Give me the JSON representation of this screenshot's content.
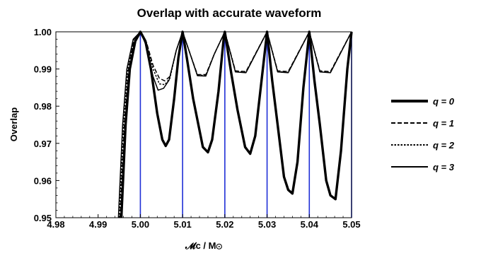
{
  "chart_data": {
    "type": "line",
    "title": "Overlap with accurate waveform",
    "xlabel": "𝓜c / M⊙",
    "ylabel": "Overlap",
    "xlim": [
      4.98,
      5.05
    ],
    "ylim": [
      0.95,
      1.0
    ],
    "x_ticks": [
      "4.98",
      "4.99",
      "5.00",
      "5.01",
      "5.02",
      "5.03",
      "5.04",
      "5.05"
    ],
    "y_ticks": [
      "0.95",
      "0.96",
      "0.97",
      "0.98",
      "0.99",
      "1.00"
    ],
    "grid": false,
    "legend_position": "right",
    "vertical_markers": [
      5.0,
      5.01,
      5.02,
      5.03,
      5.04,
      5.05
    ],
    "vertical_marker_color": "#1f2fd6",
    "line_color": "#000000",
    "series": [
      {
        "name": "q = 0",
        "style": "thick",
        "points": [
          [
            4.9955,
            0.95
          ],
          [
            4.9965,
            0.975
          ],
          [
            4.9975,
            0.99
          ],
          [
            4.9988,
            0.9975
          ],
          [
            5.0,
            1.0
          ],
          [
            5.0012,
            0.9975
          ],
          [
            5.0025,
            0.99
          ],
          [
            5.004,
            0.978
          ],
          [
            5.0052,
            0.971
          ],
          [
            5.006,
            0.9693
          ],
          [
            5.0068,
            0.971
          ],
          [
            5.008,
            0.982
          ],
          [
            5.009,
            0.993
          ],
          [
            5.01,
            1.0
          ],
          [
            5.011,
            0.993
          ],
          [
            5.0125,
            0.982
          ],
          [
            5.0148,
            0.969
          ],
          [
            5.016,
            0.9676
          ],
          [
            5.017,
            0.971
          ],
          [
            5.0185,
            0.984
          ],
          [
            5.0198,
            0.999
          ],
          [
            5.02,
            1.0
          ],
          [
            5.0215,
            0.989
          ],
          [
            5.023,
            0.979
          ],
          [
            5.0248,
            0.969
          ],
          [
            5.026,
            0.9672
          ],
          [
            5.0272,
            0.972
          ],
          [
            5.0285,
            0.985
          ],
          [
            5.03,
            1.0
          ],
          [
            5.0312,
            0.987
          ],
          [
            5.0325,
            0.975
          ],
          [
            5.034,
            0.961
          ],
          [
            5.035,
            0.9575
          ],
          [
            5.036,
            0.9565
          ],
          [
            5.0372,
            0.965
          ],
          [
            5.0386,
            0.985
          ],
          [
            5.04,
            1.0
          ],
          [
            5.0412,
            0.987
          ],
          [
            5.0425,
            0.975
          ],
          [
            5.044,
            0.96
          ],
          [
            5.045,
            0.956
          ],
          [
            5.0462,
            0.955
          ],
          [
            5.0475,
            0.968
          ],
          [
            5.049,
            0.99
          ],
          [
            5.05,
            1.0
          ]
        ]
      },
      {
        "name": "q = 1",
        "style": "dashed",
        "points": [
          [
            4.9952,
            0.95
          ],
          [
            4.9962,
            0.975
          ],
          [
            4.9972,
            0.99
          ],
          [
            4.9985,
            0.998
          ],
          [
            5.0,
            1.0
          ],
          [
            5.0015,
            0.997
          ],
          [
            5.003,
            0.991
          ],
          [
            5.0045,
            0.9875
          ],
          [
            5.0058,
            0.9868
          ],
          [
            5.007,
            0.988
          ],
          [
            5.0085,
            0.995
          ],
          [
            5.01,
            1.0
          ],
          [
            5.0115,
            0.995
          ],
          [
            5.0135,
            0.9885
          ],
          [
            5.0155,
            0.9885
          ],
          [
            5.0175,
            0.994
          ],
          [
            5.02,
            1.0
          ],
          [
            5.0225,
            0.9895
          ],
          [
            5.025,
            0.9893
          ],
          [
            5.03,
            1.0
          ],
          [
            5.0325,
            0.9895
          ],
          [
            5.035,
            0.9893
          ],
          [
            5.04,
            1.0
          ],
          [
            5.0425,
            0.9895
          ],
          [
            5.045,
            0.9893
          ],
          [
            5.05,
            1.0
          ]
        ]
      },
      {
        "name": "q = 2",
        "style": "dotted",
        "points": [
          [
            4.995,
            0.95
          ],
          [
            4.996,
            0.975
          ],
          [
            4.997,
            0.99
          ],
          [
            4.9985,
            0.998
          ],
          [
            5.0,
            1.0
          ],
          [
            5.0015,
            0.997
          ],
          [
            5.003,
            0.99
          ],
          [
            5.0045,
            0.986
          ],
          [
            5.0058,
            0.9858
          ],
          [
            5.007,
            0.9875
          ],
          [
            5.0085,
            0.995
          ],
          [
            5.01,
            1.0
          ],
          [
            5.0115,
            0.995
          ],
          [
            5.0135,
            0.9883
          ],
          [
            5.0155,
            0.9883
          ],
          [
            5.0175,
            0.994
          ],
          [
            5.02,
            1.0
          ],
          [
            5.0225,
            0.9893
          ],
          [
            5.025,
            0.9891
          ],
          [
            5.03,
            1.0
          ],
          [
            5.0325,
            0.9893
          ],
          [
            5.035,
            0.9891
          ],
          [
            5.04,
            1.0
          ],
          [
            5.0425,
            0.9893
          ],
          [
            5.045,
            0.9891
          ],
          [
            5.05,
            1.0
          ]
        ]
      },
      {
        "name": "q = 3",
        "style": "solid",
        "points": [
          [
            4.9948,
            0.95
          ],
          [
            4.9958,
            0.975
          ],
          [
            4.9968,
            0.99
          ],
          [
            4.9983,
            0.998
          ],
          [
            5.0,
            1.0
          ],
          [
            5.0015,
            0.996
          ],
          [
            5.003,
            0.988
          ],
          [
            5.0042,
            0.9843
          ],
          [
            5.0055,
            0.9848
          ],
          [
            5.0068,
            0.987
          ],
          [
            5.0085,
            0.995
          ],
          [
            5.01,
            1.0
          ],
          [
            5.0115,
            0.995
          ],
          [
            5.0135,
            0.9882
          ],
          [
            5.0155,
            0.9881
          ],
          [
            5.0175,
            0.994
          ],
          [
            5.02,
            1.0
          ],
          [
            5.0225,
            0.9892
          ],
          [
            5.025,
            0.989
          ],
          [
            5.03,
            1.0
          ],
          [
            5.0325,
            0.9892
          ],
          [
            5.035,
            0.989
          ],
          [
            5.04,
            1.0
          ],
          [
            5.0425,
            0.9892
          ],
          [
            5.045,
            0.989
          ],
          [
            5.05,
            1.0
          ]
        ]
      }
    ]
  }
}
